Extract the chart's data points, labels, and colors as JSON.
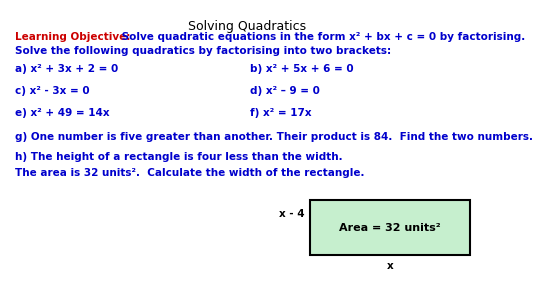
{
  "title": "Solving Quadratics",
  "title_color": "#000000",
  "bg_color": "#ffffff",
  "learning_obj_label": "Learning Objective:",
  "learning_obj_label_color": "#cc0000",
  "learning_obj_text": " Solve quadratic equations in the form x² + bx + c = 0 by factorising.",
  "learning_obj_text_color": "#0000cc",
  "line2": "Solve the following quadratics by factorising into two brackets:",
  "line2_color": "#0000cc",
  "problems_left": [
    "a) x² + 3x + 2 = 0",
    "c) x² - 3x = 0",
    "e) x² + 49 = 14x"
  ],
  "problems_right": [
    "b) x² + 5x + 6 = 0",
    "d) x² – 9 = 0",
    "f) x² = 17x"
  ],
  "problem_color": "#0000cc",
  "line_g": "g) One number is five greater than another. Their product is 84.  Find the two numbers.",
  "line_h1": "h) The height of a rectangle is four less than the width.",
  "line_h2": "The area is 32 units².  Calculate the width of the rectangle.",
  "line_h_color": "#0000cc",
  "rect_fill": "#c6efce",
  "rect_edge": "#000000",
  "rect_label": "Area = 32 units²",
  "rect_label_color": "#000000",
  "rect_x_label": "x - 4",
  "rect_bottom_label": "x"
}
